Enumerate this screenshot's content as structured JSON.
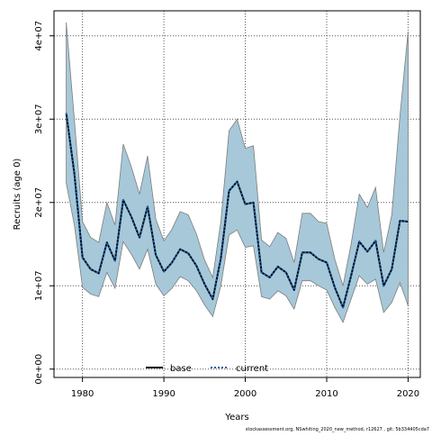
{
  "chart_data": {
    "type": "line",
    "title": "",
    "xlabel": "Years",
    "ylabel": "Recruits (age 0)",
    "xlim": [
      1976.5,
      2021.5
    ],
    "ylim": [
      -1000000,
      43000000
    ],
    "xticks": [
      1980,
      1990,
      2000,
      2010,
      2020
    ],
    "xtick_labels": [
      "1980",
      "1990",
      "2000",
      "2010",
      "2020"
    ],
    "yticks": [
      0,
      10000000,
      20000000,
      30000000,
      40000000
    ],
    "ytick_labels": [
      "0e+00",
      "1e+07",
      "2e+07",
      "3e+07",
      "4e+07"
    ],
    "grid": true,
    "legend_position": "bottom-center",
    "band_color": "#a6c8d9",
    "band_edge_color": "#7d7d7d",
    "x": [
      1978,
      1979,
      1980,
      1981,
      1982,
      1983,
      1984,
      1985,
      1986,
      1987,
      1988,
      1989,
      1990,
      1991,
      1992,
      1993,
      1994,
      1995,
      1996,
      1997,
      1998,
      1999,
      2000,
      2001,
      2002,
      2003,
      2004,
      2005,
      2006,
      2007,
      2008,
      2009,
      2010,
      2011,
      2012,
      2013,
      2014,
      2015,
      2016,
      2017,
      2018,
      2019,
      2020
    ],
    "upper": [
      41600000,
      30000000,
      17700000,
      15800000,
      15200000,
      20000000,
      17300000,
      27000000,
      24300000,
      21000000,
      25600000,
      18000000,
      15400000,
      16800000,
      18900000,
      18500000,
      16200000,
      13100000,
      11000000,
      17700000,
      28600000,
      30000000,
      26500000,
      26800000,
      15500000,
      14700000,
      16400000,
      15700000,
      12800000,
      18700000,
      18700000,
      17700000,
      17500000,
      13200000,
      10000000,
      15000000,
      21000000,
      19400000,
      21800000,
      14000000,
      18500000,
      30400000,
      40500000
    ],
    "lower": [
      22300000,
      17300000,
      9800000,
      9000000,
      8700000,
      11600000,
      9700000,
      15300000,
      13800000,
      12000000,
      14400000,
      10200000,
      8800000,
      9700000,
      11100000,
      10600000,
      9400000,
      7700000,
      6300000,
      10000000,
      16100000,
      16700000,
      14600000,
      14800000,
      8700000,
      8400000,
      9400000,
      8800000,
      7200000,
      10600000,
      10600000,
      10000000,
      9500000,
      7400000,
      5600000,
      8400000,
      11200000,
      10200000,
      10800000,
      6800000,
      8000000,
      10400000,
      7600000
    ],
    "series": [
      {
        "name": "base",
        "color": "#000000",
        "style": "solid",
        "values": [
          30700000,
          23500000,
          13400000,
          12000000,
          11500000,
          15200000,
          13000000,
          20300000,
          18300000,
          15800000,
          19500000,
          13700000,
          11700000,
          12800000,
          14400000,
          13900000,
          12400000,
          10200000,
          8400000,
          13300000,
          21400000,
          22500000,
          19800000,
          20000000,
          11600000,
          11000000,
          12300000,
          11600000,
          9500000,
          14000000,
          14000000,
          13200000,
          12800000,
          9800000,
          7400000,
          11200000,
          15300000,
          14100000,
          15400000,
          10000000,
          12000000,
          17800000,
          17700000
        ]
      },
      {
        "name": "current",
        "color": "#1f5fa8",
        "style": "dotted",
        "values": [
          30700000,
          23500000,
          13400000,
          12000000,
          11500000,
          15200000,
          13000000,
          20300000,
          18300000,
          15800000,
          19500000,
          13700000,
          11700000,
          12800000,
          14400000,
          13900000,
          12400000,
          10200000,
          8400000,
          13300000,
          21400000,
          22500000,
          19800000,
          20000000,
          11600000,
          11000000,
          12300000,
          11600000,
          9500000,
          14000000,
          14000000,
          13200000,
          12800000,
          9800000,
          7400000,
          11200000,
          15300000,
          14100000,
          15400000,
          10000000,
          12000000,
          17800000,
          17700000
        ]
      }
    ],
    "footnote": "stockassessment.org, NSwhiting_2020_new_method, r12627 , git: 5b334405cda7"
  }
}
